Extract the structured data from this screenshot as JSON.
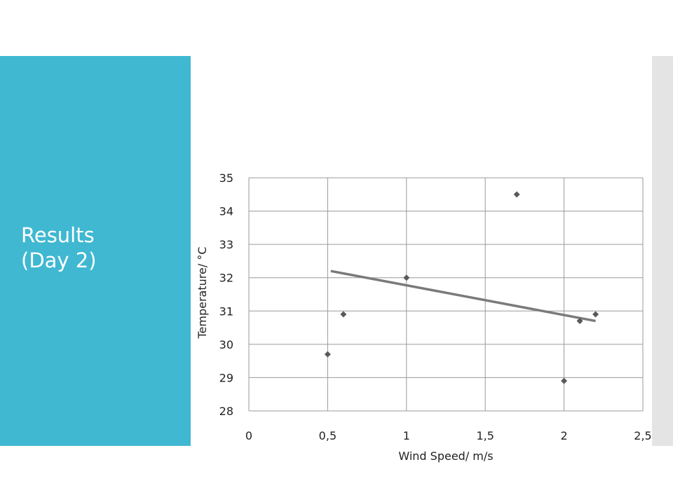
{
  "slide": {
    "title_lines": [
      "Results",
      "(Day 2)"
    ]
  },
  "colors": {
    "panel": "#40b8d2",
    "strip": "#e4e4e4",
    "marker": "#5a5a5a",
    "trendline": "#7a7a7a",
    "grid": "#9a9a9a"
  },
  "chart_data": {
    "type": "scatter",
    "title": "",
    "xlabel": "Wind Speed/ m/s",
    "ylabel": "Temperature/ °C",
    "xlim": [
      0,
      2.5
    ],
    "ylim": [
      28,
      35
    ],
    "x_ticks": [
      0,
      0.5,
      1,
      1.5,
      2,
      2.5
    ],
    "x_tick_labels": [
      "0",
      "0,5",
      "1",
      "1,5",
      "2",
      "2,5"
    ],
    "y_ticks": [
      28,
      29,
      30,
      31,
      32,
      33,
      34,
      35
    ],
    "y_tick_labels": [
      "28",
      "29",
      "30",
      "31",
      "32",
      "33",
      "34",
      "35"
    ],
    "grid": "vertical and horizontal",
    "marker": "diamond",
    "points": [
      {
        "x": 0.5,
        "y": 29.7
      },
      {
        "x": 0.6,
        "y": 30.9
      },
      {
        "x": 1.0,
        "y": 32.0
      },
      {
        "x": 1.7,
        "y": 34.5
      },
      {
        "x": 2.0,
        "y": 28.9
      },
      {
        "x": 2.1,
        "y": 30.7
      },
      {
        "x": 2.2,
        "y": 30.9
      }
    ],
    "trendline": {
      "type": "linear",
      "from": {
        "x": 0.52,
        "y": 32.2
      },
      "to": {
        "x": 2.2,
        "y": 30.7
      }
    }
  }
}
